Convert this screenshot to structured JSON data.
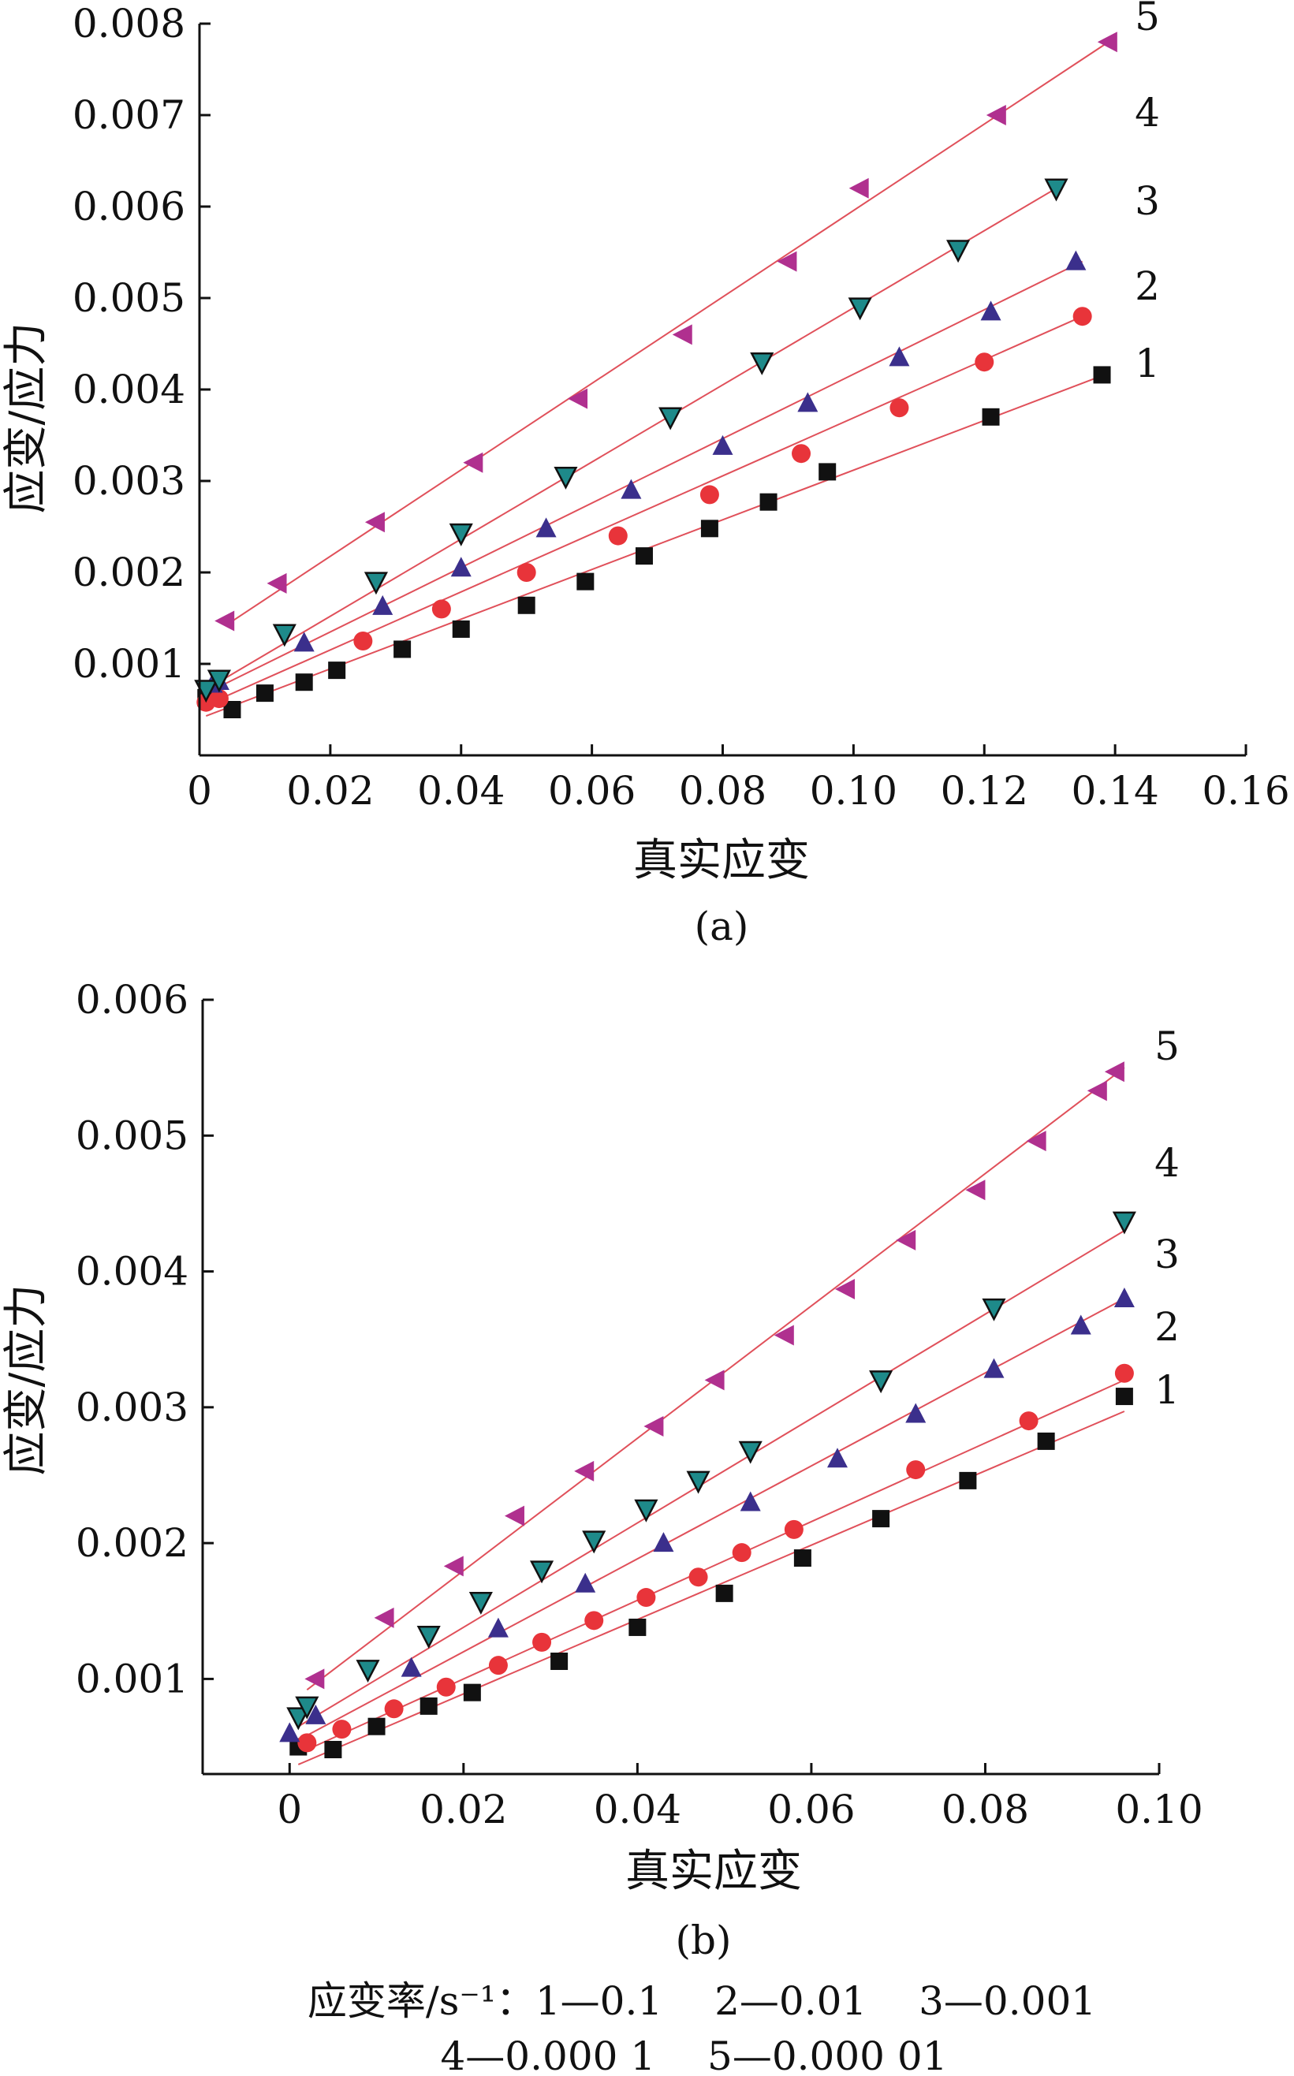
{
  "colors": {
    "series1": "#111111",
    "series2": "#e8343a",
    "series3": "#3b2f8c",
    "series4": "#1e8a8a",
    "series5": "#b0308f",
    "fit_line": "#e0505a"
  },
  "legend": {
    "line1": "应变率/s⁻¹：1—0.1　 2—0.01　 3—0.001",
    "line2": "4—0.000 1　 5—0.000 01"
  },
  "chart_data": [
    {
      "type": "scatter",
      "panel_label": "(a)",
      "xlabel": "真实应变",
      "ylabel": "应变/应力",
      "xlim": [
        0,
        0.16
      ],
      "ylim": [
        0,
        0.008
      ],
      "x_ticks": [
        "0",
        "0.02",
        "0.04",
        "0.06",
        "0.08",
        "0.10",
        "0.12",
        "0.14",
        "0.16"
      ],
      "y_ticks": [
        "0.001",
        "0.002",
        "0.003",
        "0.004",
        "0.005",
        "0.006",
        "0.007",
        "0.008"
      ],
      "series": [
        {
          "name": "1",
          "marker": "square",
          "color_key": "series1",
          "fit": [
            [
              0.001,
              0.00043
            ],
            [
              0.138,
              0.00415
            ]
          ],
          "points": [
            [
              0.001,
              0.00063
            ],
            [
              0.005,
              0.0005
            ],
            [
              0.01,
              0.00068
            ],
            [
              0.016,
              0.0008
            ],
            [
              0.021,
              0.00093
            ],
            [
              0.031,
              0.00116
            ],
            [
              0.04,
              0.00138
            ],
            [
              0.05,
              0.00164
            ],
            [
              0.059,
              0.0019
            ],
            [
              0.068,
              0.00218
            ],
            [
              0.078,
              0.00248
            ],
            [
              0.087,
              0.00277
            ],
            [
              0.096,
              0.0031
            ],
            [
              0.121,
              0.0037
            ],
            [
              0.138,
              0.00416
            ]
          ]
        },
        {
          "name": "2",
          "marker": "circle",
          "color_key": "series2",
          "fit": [
            [
              0.001,
              0.00055
            ],
            [
              0.135,
              0.0048
            ]
          ],
          "points": [
            [
              0.001,
              0.00058
            ],
            [
              0.003,
              0.00062
            ],
            [
              0.025,
              0.00125
            ],
            [
              0.037,
              0.0016
            ],
            [
              0.05,
              0.002
            ],
            [
              0.064,
              0.0024
            ],
            [
              0.078,
              0.00285
            ],
            [
              0.092,
              0.0033
            ],
            [
              0.107,
              0.0038
            ],
            [
              0.12,
              0.0043
            ],
            [
              0.135,
              0.0048
            ]
          ]
        },
        {
          "name": "3",
          "marker": "triangle-up",
          "color_key": "series3",
          "fit": [
            [
              0.001,
              0.00068
            ],
            [
              0.135,
              0.0054
            ]
          ],
          "points": [
            [
              0.002,
              0.00078
            ],
            [
              0.003,
              0.00081
            ],
            [
              0.016,
              0.00123
            ],
            [
              0.028,
              0.00163
            ],
            [
              0.04,
              0.00205
            ],
            [
              0.053,
              0.00248
            ],
            [
              0.066,
              0.0029
            ],
            [
              0.08,
              0.00338
            ],
            [
              0.093,
              0.00385
            ],
            [
              0.107,
              0.00435
            ],
            [
              0.121,
              0.00485
            ],
            [
              0.134,
              0.0054
            ]
          ]
        },
        {
          "name": "4",
          "marker": "triangle-down",
          "color_key": "series4",
          "fit": [
            [
              0.001,
              0.00072
            ],
            [
              0.131,
              0.0062
            ]
          ],
          "points": [
            [
              0.001,
              0.00072
            ],
            [
              0.003,
              0.00083
            ],
            [
              0.013,
              0.00133
            ],
            [
              0.027,
              0.0019
            ],
            [
              0.04,
              0.00243
            ],
            [
              0.056,
              0.00305
            ],
            [
              0.072,
              0.0037
            ],
            [
              0.086,
              0.0043
            ],
            [
              0.101,
              0.0049
            ],
            [
              0.116,
              0.00553
            ],
            [
              0.131,
              0.0062
            ]
          ]
        },
        {
          "name": "5",
          "marker": "triangle-left",
          "color_key": "series5",
          "fit": [
            [
              0.004,
              0.00142
            ],
            [
              0.139,
              0.0078
            ]
          ],
          "points": [
            [
              0.004,
              0.00147
            ],
            [
              0.012,
              0.00188
            ],
            [
              0.027,
              0.00255
            ],
            [
              0.042,
              0.0032
            ],
            [
              0.058,
              0.0039
            ],
            [
              0.074,
              0.0046
            ],
            [
              0.09,
              0.0054
            ],
            [
              0.101,
              0.0062
            ],
            [
              0.122,
              0.007
            ],
            [
              0.139,
              0.0078
            ]
          ]
        }
      ]
    },
    {
      "type": "scatter",
      "panel_label": "(b)",
      "xlabel": "真实应变",
      "ylabel": "应变/应力",
      "xlim": [
        -0.01,
        0.1
      ],
      "ylim": [
        0.0003,
        0.006
      ],
      "x_ticks": [
        "0",
        "0.02",
        "0.04",
        "0.06",
        "0.08",
        "0.10"
      ],
      "y_ticks": [
        "0.001",
        "0.002",
        "0.003",
        "0.004",
        "0.005",
        "0.006"
      ],
      "series": [
        {
          "name": "1",
          "marker": "square",
          "color_key": "series1",
          "fit": [
            [
              0.001,
              0.00037
            ],
            [
              0.096,
              0.00297
            ]
          ],
          "points": [
            [
              0.001,
              0.0005
            ],
            [
              0.005,
              0.00048
            ],
            [
              0.01,
              0.00065
            ],
            [
              0.016,
              0.0008
            ],
            [
              0.021,
              0.0009
            ],
            [
              0.031,
              0.00113
            ],
            [
              0.04,
              0.00138
            ],
            [
              0.05,
              0.00163
            ],
            [
              0.059,
              0.00189
            ],
            [
              0.068,
              0.00218
            ],
            [
              0.078,
              0.00246
            ],
            [
              0.087,
              0.00275
            ],
            [
              0.096,
              0.00308
            ]
          ]
        },
        {
          "name": "2",
          "marker": "circle",
          "color_key": "series2",
          "fit": [
            [
              0.001,
              0.00045
            ],
            [
              0.096,
              0.0032
            ]
          ],
          "points": [
            [
              0.002,
              0.00053
            ],
            [
              0.006,
              0.00063
            ],
            [
              0.012,
              0.00078
            ],
            [
              0.018,
              0.00094
            ],
            [
              0.024,
              0.0011
            ],
            [
              0.029,
              0.00127
            ],
            [
              0.035,
              0.00143
            ],
            [
              0.041,
              0.0016
            ],
            [
              0.047,
              0.00175
            ],
            [
              0.052,
              0.00193
            ],
            [
              0.058,
              0.0021
            ],
            [
              0.072,
              0.00254
            ],
            [
              0.085,
              0.0029
            ],
            [
              0.096,
              0.00325
            ]
          ]
        },
        {
          "name": "3",
          "marker": "triangle-up",
          "color_key": "series3",
          "fit": [
            [
              0.001,
              0.00055
            ],
            [
              0.096,
              0.0038
            ]
          ],
          "points": [
            [
              0.0,
              0.0006
            ],
            [
              0.003,
              0.00073
            ],
            [
              0.014,
              0.00108
            ],
            [
              0.024,
              0.00137
            ],
            [
              0.034,
              0.0017
            ],
            [
              0.043,
              0.002
            ],
            [
              0.053,
              0.0023
            ],
            [
              0.063,
              0.00262
            ],
            [
              0.072,
              0.00295
            ],
            [
              0.081,
              0.00328
            ],
            [
              0.091,
              0.0036
            ],
            [
              0.096,
              0.0038
            ]
          ]
        },
        {
          "name": "4",
          "marker": "triangle-down",
          "color_key": "series4",
          "fit": [
            [
              0.001,
              0.00065
            ],
            [
              0.096,
              0.0043
            ]
          ],
          "points": [
            [
              0.001,
              0.00072
            ],
            [
              0.002,
              0.0008
            ],
            [
              0.009,
              0.00107
            ],
            [
              0.016,
              0.00132
            ],
            [
              0.022,
              0.00157
            ],
            [
              0.029,
              0.0018
            ],
            [
              0.035,
              0.00202
            ],
            [
              0.041,
              0.00225
            ],
            [
              0.047,
              0.00246
            ],
            [
              0.053,
              0.00268
            ],
            [
              0.068,
              0.0032
            ],
            [
              0.081,
              0.00373
            ],
            [
              0.096,
              0.00437
            ]
          ]
        },
        {
          "name": "5",
          "marker": "triangle-left",
          "color_key": "series5",
          "fit": [
            [
              0.002,
              0.00092
            ],
            [
              0.096,
              0.0055
            ]
          ],
          "points": [
            [
              0.003,
              0.001
            ],
            [
              0.011,
              0.00145
            ],
            [
              0.019,
              0.00183
            ],
            [
              0.026,
              0.0022
            ],
            [
              0.034,
              0.00253
            ],
            [
              0.042,
              0.00286
            ],
            [
              0.049,
              0.0032
            ],
            [
              0.057,
              0.00353
            ],
            [
              0.064,
              0.00387
            ],
            [
              0.071,
              0.00423
            ],
            [
              0.079,
              0.0046
            ],
            [
              0.086,
              0.00496
            ],
            [
              0.093,
              0.00533
            ],
            [
              0.095,
              0.00547
            ]
          ]
        }
      ]
    }
  ]
}
